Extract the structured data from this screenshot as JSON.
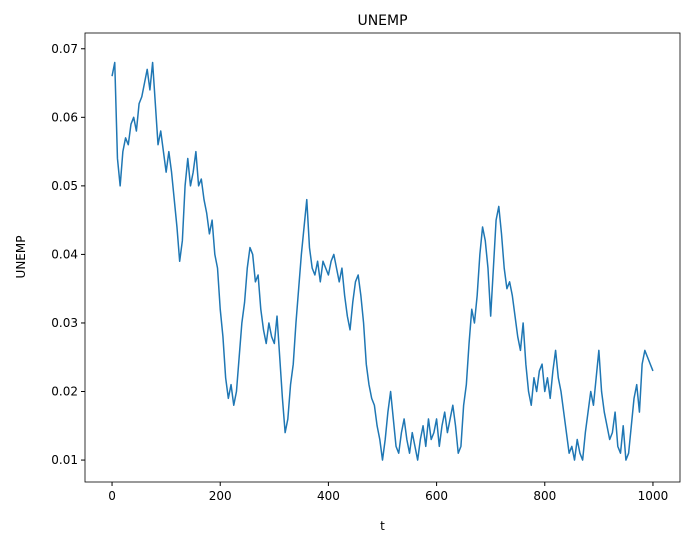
{
  "chart_data": {
    "type": "line",
    "title": "UNEMP",
    "x_label": "t",
    "y_label": "UNEMP",
    "xlim": [
      -50,
      1050
    ],
    "ylim": [
      0.0068,
      0.0723
    ],
    "xticks": [
      0,
      200,
      400,
      600,
      800,
      1000
    ],
    "yticks": [
      0.01,
      0.02,
      0.03,
      0.04,
      0.05,
      0.06,
      0.07
    ],
    "x": [
      0,
      5,
      10,
      15,
      20,
      25,
      30,
      35,
      40,
      45,
      50,
      55,
      60,
      65,
      70,
      75,
      80,
      85,
      90,
      95,
      100,
      105,
      110,
      115,
      120,
      125,
      130,
      135,
      140,
      145,
      150,
      155,
      160,
      165,
      170,
      175,
      180,
      185,
      190,
      195,
      200,
      205,
      210,
      215,
      220,
      225,
      230,
      235,
      240,
      245,
      250,
      255,
      260,
      265,
      270,
      275,
      280,
      285,
      290,
      295,
      300,
      305,
      310,
      315,
      320,
      325,
      330,
      335,
      340,
      345,
      350,
      355,
      360,
      365,
      370,
      375,
      380,
      385,
      390,
      395,
      400,
      405,
      410,
      415,
      420,
      425,
      430,
      435,
      440,
      445,
      450,
      455,
      460,
      465,
      470,
      475,
      480,
      485,
      490,
      495,
      500,
      505,
      510,
      515,
      520,
      525,
      530,
      535,
      540,
      545,
      550,
      555,
      560,
      565,
      570,
      575,
      580,
      585,
      590,
      595,
      600,
      605,
      610,
      615,
      620,
      625,
      630,
      635,
      640,
      645,
      650,
      655,
      660,
      665,
      670,
      675,
      680,
      685,
      690,
      695,
      700,
      705,
      710,
      715,
      720,
      725,
      730,
      735,
      740,
      745,
      750,
      755,
      760,
      765,
      770,
      775,
      780,
      785,
      790,
      795,
      800,
      805,
      810,
      815,
      820,
      825,
      830,
      835,
      840,
      845,
      850,
      855,
      860,
      865,
      870,
      875,
      880,
      885,
      890,
      895,
      900,
      905,
      910,
      915,
      920,
      925,
      930,
      935,
      940,
      945,
      950,
      955,
      960,
      965,
      970,
      975,
      980,
      985,
      990,
      995,
      1000
    ],
    "series": [
      {
        "name": "UNEMP",
        "color": "#1f77b4",
        "values": [
          0.066,
          0.068,
          0.054,
          0.05,
          0.055,
          0.057,
          0.056,
          0.059,
          0.06,
          0.058,
          0.062,
          0.063,
          0.065,
          0.067,
          0.064,
          0.068,
          0.062,
          0.056,
          0.058,
          0.055,
          0.052,
          0.055,
          0.052,
          0.048,
          0.044,
          0.039,
          0.042,
          0.05,
          0.054,
          0.05,
          0.052,
          0.055,
          0.05,
          0.051,
          0.048,
          0.046,
          0.043,
          0.045,
          0.04,
          0.038,
          0.032,
          0.028,
          0.022,
          0.019,
          0.021,
          0.018,
          0.02,
          0.025,
          0.03,
          0.033,
          0.038,
          0.041,
          0.04,
          0.036,
          0.037,
          0.032,
          0.029,
          0.027,
          0.03,
          0.028,
          0.027,
          0.031,
          0.025,
          0.019,
          0.014,
          0.016,
          0.021,
          0.024,
          0.03,
          0.035,
          0.04,
          0.044,
          0.048,
          0.041,
          0.038,
          0.037,
          0.039,
          0.036,
          0.039,
          0.038,
          0.037,
          0.039,
          0.04,
          0.038,
          0.036,
          0.038,
          0.034,
          0.031,
          0.029,
          0.033,
          0.036,
          0.037,
          0.034,
          0.03,
          0.024,
          0.021,
          0.019,
          0.018,
          0.015,
          0.013,
          0.01,
          0.013,
          0.017,
          0.02,
          0.016,
          0.012,
          0.011,
          0.014,
          0.016,
          0.013,
          0.011,
          0.014,
          0.012,
          0.01,
          0.013,
          0.015,
          0.012,
          0.016,
          0.013,
          0.014,
          0.016,
          0.012,
          0.015,
          0.017,
          0.014,
          0.016,
          0.018,
          0.015,
          0.011,
          0.012,
          0.018,
          0.021,
          0.027,
          0.032,
          0.03,
          0.034,
          0.04,
          0.044,
          0.042,
          0.038,
          0.031,
          0.038,
          0.045,
          0.047,
          0.043,
          0.038,
          0.035,
          0.036,
          0.034,
          0.031,
          0.028,
          0.026,
          0.03,
          0.024,
          0.02,
          0.018,
          0.022,
          0.02,
          0.023,
          0.024,
          0.02,
          0.022,
          0.019,
          0.023,
          0.026,
          0.022,
          0.02,
          0.017,
          0.014,
          0.011,
          0.012,
          0.01,
          0.013,
          0.011,
          0.01,
          0.014,
          0.017,
          0.02,
          0.018,
          0.022,
          0.026,
          0.02,
          0.017,
          0.015,
          0.013,
          0.014,
          0.017,
          0.012,
          0.011,
          0.015,
          0.01,
          0.011,
          0.015,
          0.019,
          0.021,
          0.017,
          0.024,
          0.026,
          0.025,
          0.024,
          0.023
        ]
      }
    ]
  }
}
